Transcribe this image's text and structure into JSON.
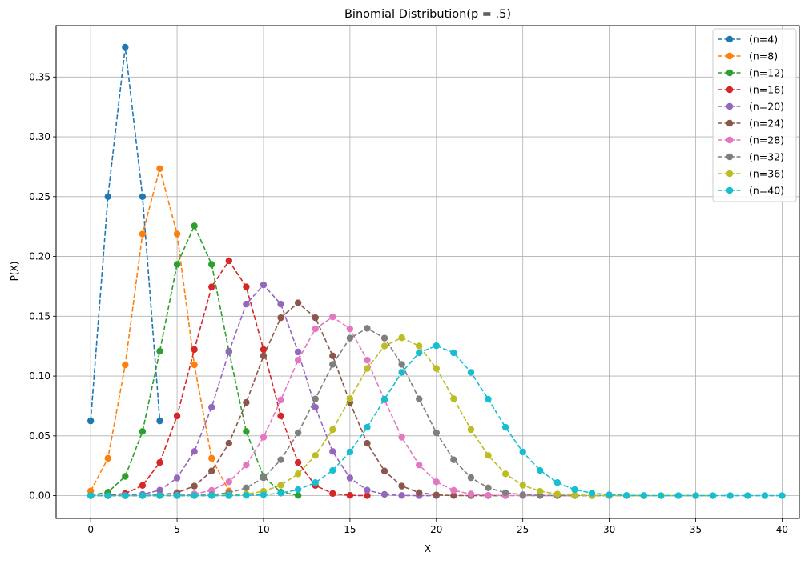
{
  "chart_data": {
    "type": "line",
    "title": "Binomial Distribution(p = .5)",
    "xlabel": "X",
    "ylabel": "P(X)",
    "xlim": [
      -2,
      41
    ],
    "ylim": [
      -0.019,
      0.393
    ],
    "xticks": [
      0,
      5,
      10,
      15,
      20,
      25,
      30,
      35,
      40
    ],
    "xtick_labels": [
      "0",
      "5",
      "10",
      "15",
      "20",
      "25",
      "30",
      "35",
      "40"
    ],
    "yticks": [
      0.0,
      0.05,
      0.1,
      0.15,
      0.2,
      0.25,
      0.3,
      0.35
    ],
    "ytick_labels": [
      "0.00",
      "0.05",
      "0.10",
      "0.15",
      "0.20",
      "0.25",
      "0.30",
      "0.35"
    ],
    "grid": true,
    "legend_position": "top-right",
    "p": 0.5,
    "series": [
      {
        "name": "(n=4)",
        "n": 4,
        "color": "#1f77b4"
      },
      {
        "name": "(n=8)",
        "n": 8,
        "color": "#ff7f0e"
      },
      {
        "name": "(n=12)",
        "n": 12,
        "color": "#2ca02c"
      },
      {
        "name": "(n=16)",
        "n": 16,
        "color": "#d62728"
      },
      {
        "name": "(n=20)",
        "n": 20,
        "color": "#9467bd"
      },
      {
        "name": "(n=24)",
        "n": 24,
        "color": "#8c564b"
      },
      {
        "name": "(n=28)",
        "n": 28,
        "color": "#e377c2"
      },
      {
        "name": "(n=32)",
        "n": 32,
        "color": "#7f7f7f"
      },
      {
        "name": "(n=36)",
        "n": 36,
        "color": "#bcbd22"
      },
      {
        "name": "(n=40)",
        "n": 40,
        "color": "#17becf"
      }
    ]
  }
}
